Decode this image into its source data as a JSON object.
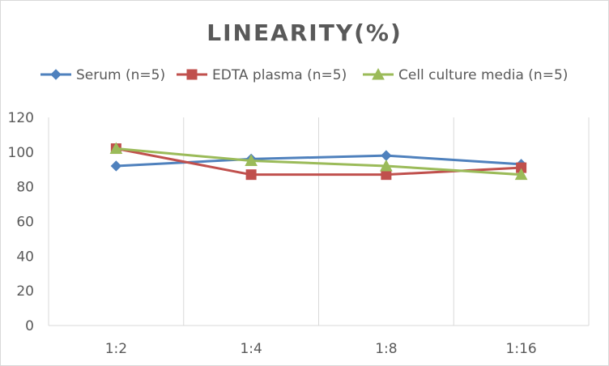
{
  "chart_data": {
    "type": "line",
    "title": "LINEARITY(%)",
    "categories": [
      "1:2",
      "1:4",
      "1:8",
      "1:16"
    ],
    "ylim": [
      0,
      120
    ],
    "yticks": [
      0,
      20,
      40,
      60,
      80,
      100,
      120
    ],
    "grid": "vertical",
    "legend": "top",
    "series": [
      {
        "name": "Serum (n=5)",
        "values": [
          92,
          96,
          98,
          93
        ],
        "color": "#4f81bd",
        "marker": "diamond"
      },
      {
        "name": "EDTA plasma (n=5)",
        "values": [
          102,
          87,
          87,
          91
        ],
        "color": "#c0504d",
        "marker": "square"
      },
      {
        "name": "Cell culture media (n=5)",
        "values": [
          102,
          95,
          92,
          87
        ],
        "color": "#9bbb59",
        "marker": "triangle"
      }
    ]
  }
}
